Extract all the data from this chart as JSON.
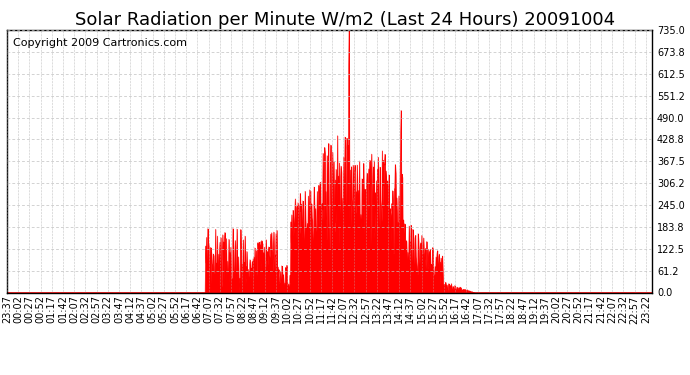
{
  "title": "Solar Radiation per Minute W/m2 (Last 24 Hours) 20091004",
  "copyright": "Copyright 2009 Cartronics.com",
  "y_max": 735.0,
  "y_min": 0.0,
  "y_ticks": [
    0.0,
    61.2,
    122.5,
    183.8,
    245.0,
    306.2,
    367.5,
    428.8,
    490.0,
    551.2,
    612.5,
    673.8,
    735.0
  ],
  "background_color": "#ffffff",
  "fill_color": "#ff0000",
  "line_color": "#ff0000",
  "grid_color": "#c0c0c0",
  "dashed_line_color": "#ff0000",
  "title_fontsize": 13,
  "copyright_fontsize": 8,
  "tick_fontsize": 7
}
